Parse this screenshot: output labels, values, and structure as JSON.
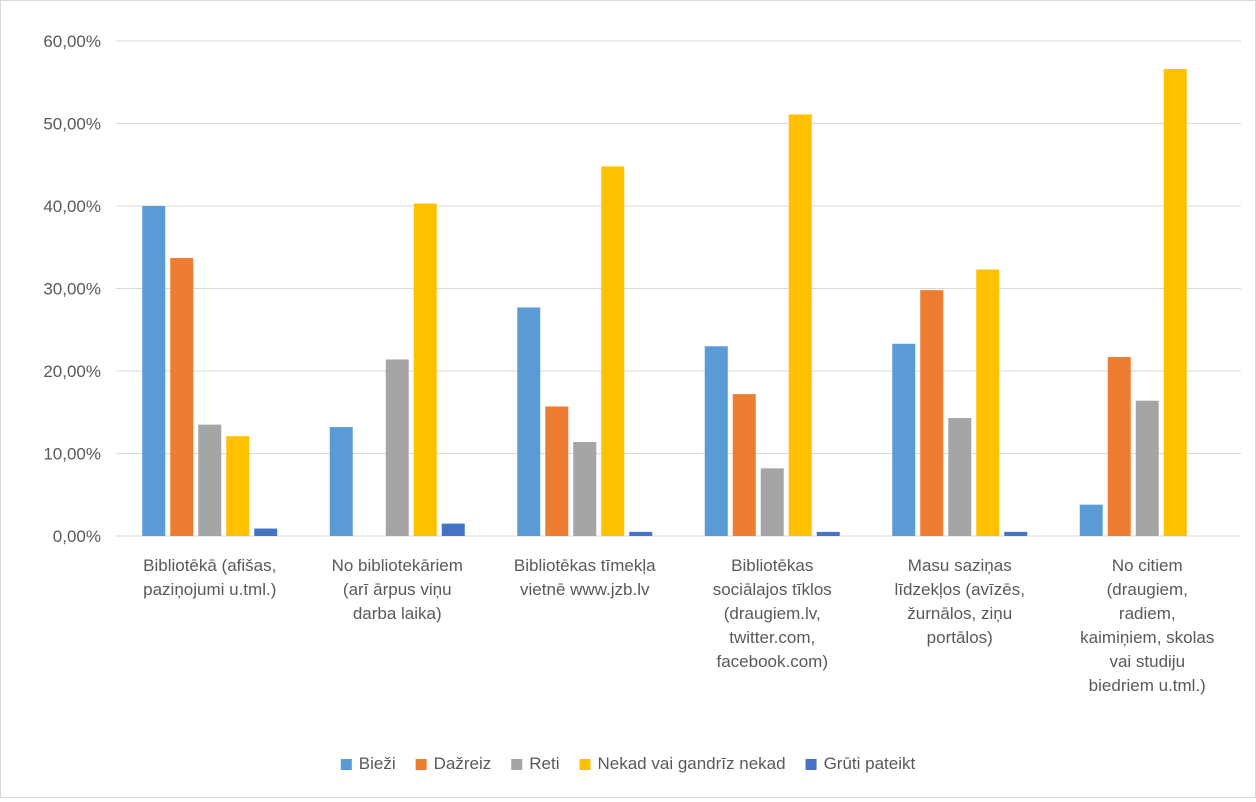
{
  "chart_data": {
    "type": "bar",
    "title": "",
    "xlabel": "",
    "ylabel": "",
    "ylim": [
      0,
      60
    ],
    "y_ticks": [
      "0,00%",
      "10,00%",
      "20,00%",
      "30,00%",
      "40,00%",
      "50,00%",
      "60,00%"
    ],
    "grid": true,
    "legend_position": "bottom",
    "categories": [
      [
        "Bibliotēkā (afišas,",
        "paziņojumi u.tml.)"
      ],
      [
        "No bibliotekāriem",
        "(arī ārpus viņu",
        "darba laika)"
      ],
      [
        "Bibliotēkas tīmekļa",
        "vietnē www.jzb.lv"
      ],
      [
        "Bibliotēkas",
        "sociālajos tīklos",
        "(draugiem.lv,",
        "twitter.com,",
        "facebook.com)"
      ],
      [
        "Masu saziņas",
        "līdzekļos (avīzēs,",
        "žurnālos, ziņu",
        "portālos)"
      ],
      [
        "No citiem",
        "(draugiem,",
        "radiem,",
        "kaimiņiem, skolas",
        "vai studiju",
        "biedriem u.tml.)"
      ]
    ],
    "series": [
      {
        "name": "Bieži",
        "color": "#5b9bd5",
        "values": [
          40.0,
          13.2,
          27.7,
          23.0,
          23.3,
          3.8
        ]
      },
      {
        "name": "Dažreiz",
        "color": "#ed7d31",
        "values": [
          33.7,
          0.0,
          15.7,
          17.2,
          29.8,
          21.7
        ]
      },
      {
        "name": "Reti",
        "color": "#a5a5a5",
        "values": [
          13.5,
          21.4,
          11.4,
          8.2,
          14.3,
          16.4
        ]
      },
      {
        "name": "Nekad vai gandrīz nekad",
        "color": "#ffc000",
        "values": [
          12.1,
          40.3,
          44.8,
          51.1,
          32.3,
          56.6
        ]
      },
      {
        "name": "Grūti pateikt",
        "color": "#4472c4",
        "values": [
          0.9,
          1.5,
          0.5,
          0.5,
          0.5,
          0.0
        ]
      }
    ]
  }
}
